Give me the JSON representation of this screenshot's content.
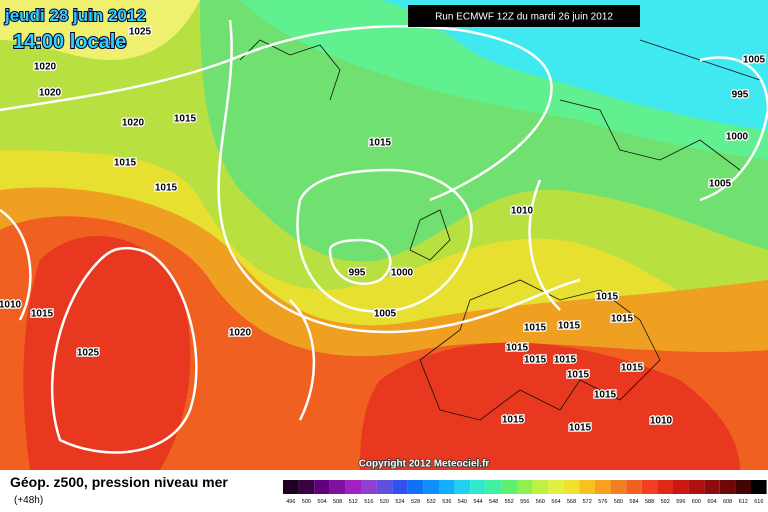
{
  "header": {
    "date": "jeudi 28 juin 2012",
    "time": "14:00 locale",
    "run": "Run ECMWF 12Z du mardi 26 juin 2012"
  },
  "copyright": "Copyright 2012 Meteociel.fr",
  "legend": {
    "title": "Géop. z500, pression niveau mer",
    "lead": "(+48h)",
    "scale": [
      "496",
      "500",
      "504",
      "508",
      "512",
      "516",
      "520",
      "524",
      "528",
      "532",
      "536",
      "540",
      "544",
      "548",
      "552",
      "556",
      "560",
      "564",
      "568",
      "572",
      "576",
      "580",
      "584",
      "588",
      "592",
      "596",
      "600",
      "604",
      "608",
      "612",
      "616"
    ]
  },
  "isobars": [
    "1025",
    "1020",
    "1020",
    "1020",
    "1015",
    "1015",
    "1015",
    "1015",
    "1010",
    "995",
    "1000",
    "1005",
    "1020",
    "1025",
    "1010",
    "1015",
    "1005",
    "995",
    "1000",
    "1005",
    "1015",
    "1015",
    "1015",
    "1015",
    "1015",
    "1015",
    "1015",
    "1015",
    "1015",
    "1015",
    "1015",
    "1015",
    "1010"
  ]
}
